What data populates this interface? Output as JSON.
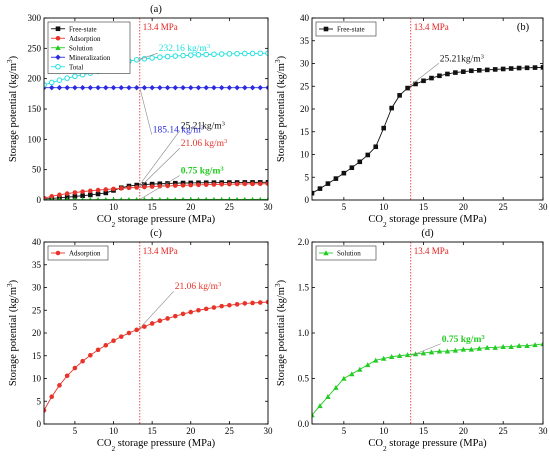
{
  "figure": {
    "ref_line_label": "13.4 MPa",
    "colors": {
      "free_state": "#111111",
      "adsorption": "#e8332a",
      "solution": "#22cc22",
      "mineralization": "#2a2ae0",
      "total": "#22e0e0",
      "ref_line": "#e52020",
      "leader": "#888888"
    }
  },
  "chart_data": [
    {
      "panel_label": "(a)",
      "type": "line",
      "xlabel": "CO2 storage pressure (MPa)",
      "ylabel": "Storage potential (kg/m3)",
      "xlim": [
        1,
        30
      ],
      "ylim": [
        0,
        300
      ],
      "xticks": [
        5,
        10,
        15,
        20,
        25,
        30
      ],
      "yticks": [
        0,
        50,
        100,
        150,
        200,
        250,
        300
      ],
      "ref_x": 13.4,
      "legend_position": "top-left",
      "series": [
        {
          "name": "Free-state",
          "color_key": "free_state",
          "marker": "square",
          "x": [
            1,
            2,
            3,
            4,
            5,
            6,
            7,
            8,
            9,
            10,
            11,
            12,
            13,
            14,
            15,
            16,
            17,
            18,
            19,
            20,
            21,
            22,
            23,
            24,
            25,
            26,
            27,
            28,
            29,
            30
          ],
          "y": [
            1.5,
            2.5,
            3.6,
            4.7,
            5.9,
            7.1,
            8.4,
            9.9,
            11.7,
            15.8,
            20.2,
            23.0,
            24.6,
            25.5,
            26.2,
            26.8,
            27.3,
            27.7,
            28.0,
            28.2,
            28.4,
            28.5,
            28.6,
            28.7,
            28.8,
            28.9,
            29.0,
            29.05,
            29.1,
            29.15
          ]
        },
        {
          "name": "Adsorption",
          "color_key": "adsorption",
          "marker": "circle",
          "x": [
            1,
            2,
            3,
            4,
            5,
            6,
            7,
            8,
            9,
            10,
            11,
            12,
            13,
            14,
            15,
            16,
            17,
            18,
            19,
            20,
            21,
            22,
            23,
            24,
            25,
            26,
            27,
            28,
            29,
            30
          ],
          "y": [
            3.0,
            6.0,
            8.5,
            10.6,
            12.3,
            13.8,
            15.1,
            16.3,
            17.3,
            18.3,
            19.2,
            20.0,
            20.7,
            21.4,
            22.1,
            22.7,
            23.2,
            23.7,
            24.2,
            24.6,
            25.0,
            25.3,
            25.6,
            25.9,
            26.1,
            26.3,
            26.5,
            26.6,
            26.7,
            26.8
          ]
        },
        {
          "name": "Solution",
          "color_key": "solution",
          "marker": "triangle",
          "x": [
            1,
            2,
            3,
            4,
            5,
            6,
            7,
            8,
            9,
            10,
            11,
            12,
            13,
            14,
            15,
            16,
            17,
            18,
            19,
            20,
            21,
            22,
            23,
            24,
            25,
            26,
            27,
            28,
            29,
            30
          ],
          "y": [
            0.1,
            0.2,
            0.3,
            0.4,
            0.5,
            0.55,
            0.6,
            0.65,
            0.7,
            0.72,
            0.74,
            0.75,
            0.76,
            0.77,
            0.78,
            0.79,
            0.8,
            0.8,
            0.81,
            0.82,
            0.82,
            0.83,
            0.84,
            0.84,
            0.85,
            0.85,
            0.86,
            0.86,
            0.87,
            0.88
          ]
        },
        {
          "name": "Mineralization",
          "color_key": "mineralization",
          "marker": "diamond",
          "x": [
            1,
            2,
            3,
            4,
            5,
            6,
            7,
            8,
            9,
            10,
            11,
            12,
            13,
            14,
            15,
            16,
            17,
            18,
            19,
            20,
            21,
            22,
            23,
            24,
            25,
            26,
            27,
            28,
            29,
            30
          ],
          "y": [
            185.14,
            185.14,
            185.14,
            185.14,
            185.14,
            185.14,
            185.14,
            185.14,
            185.14,
            185.14,
            185.14,
            185.14,
            185.14,
            185.14,
            185.14,
            185.14,
            185.14,
            185.14,
            185.14,
            185.14,
            185.14,
            185.14,
            185.14,
            185.14,
            185.14,
            185.14,
            185.14,
            185.14,
            185.14,
            185.14
          ]
        },
        {
          "name": "Total",
          "color_key": "total",
          "marker": "circle-open",
          "x": [
            1,
            2,
            3,
            4,
            5,
            6,
            7,
            8,
            9,
            10,
            11,
            12,
            13,
            14,
            15,
            16,
            17,
            18,
            19,
            20,
            21,
            22,
            23,
            24,
            25,
            26,
            27,
            28,
            29,
            30
          ],
          "y": [
            189.7,
            193.8,
            197.5,
            200.8,
            203.9,
            206.6,
            209.2,
            211.9,
            214.8,
            220.0,
            225.3,
            228.9,
            231.2,
            232.8,
            234.2,
            235.4,
            236.4,
            237.3,
            238.1,
            238.8,
            239.4,
            239.8,
            240.2,
            240.6,
            240.9,
            241.2,
            241.5,
            241.6,
            241.8,
            241.97
          ]
        }
      ],
      "annotations": [
        {
          "text": "232.16 kg/m3",
          "color_key": "total",
          "x": 13.4,
          "y": 232.16
        },
        {
          "text": "185.14 kg/m3",
          "color_key": "mineralization",
          "x": 13.4,
          "y": 185.14
        },
        {
          "text": "25.21kg/m3",
          "color_key": "free_state",
          "x": 13.4,
          "y": 25.21
        },
        {
          "text": "21.06 kg/m3",
          "color_key": "adsorption",
          "x": 13.4,
          "y": 21.06
        },
        {
          "text": "0.75 kg/m3",
          "color_key": "solution",
          "x": 13.4,
          "y": 0.75
        }
      ]
    },
    {
      "panel_label": "(b)",
      "type": "line",
      "xlabel": "CO2 storage pressure (MPa)",
      "ylabel": "Storage potential (kg/m3)",
      "xlim": [
        1,
        30
      ],
      "ylim": [
        0,
        40
      ],
      "xticks": [
        5,
        10,
        15,
        20,
        25,
        30
      ],
      "yticks": [
        0,
        5,
        10,
        15,
        20,
        25,
        30,
        35,
        40
      ],
      "ref_x": 13.4,
      "legend_position": "top-left",
      "series": [
        {
          "name": "Free-state",
          "color_key": "free_state",
          "marker": "square",
          "x": [
            1,
            2,
            3,
            4,
            5,
            6,
            7,
            8,
            9,
            10,
            11,
            12,
            13,
            14,
            15,
            16,
            17,
            18,
            19,
            20,
            21,
            22,
            23,
            24,
            25,
            26,
            27,
            28,
            29,
            30
          ],
          "y": [
            1.5,
            2.5,
            3.6,
            4.7,
            5.9,
            7.1,
            8.4,
            9.9,
            11.7,
            15.8,
            20.2,
            23.0,
            24.6,
            25.5,
            26.2,
            26.8,
            27.3,
            27.7,
            28.0,
            28.2,
            28.4,
            28.5,
            28.6,
            28.7,
            28.8,
            28.9,
            29.0,
            29.05,
            29.1,
            29.15
          ]
        }
      ],
      "annotations": [
        {
          "text": "25.21kg/m3",
          "color_key": "free_state",
          "x": 13.4,
          "y": 25.21
        }
      ]
    },
    {
      "panel_label": "(c)",
      "type": "line",
      "xlabel": "CO2 storage pressure (MPa)",
      "ylabel": "Storage potential (kg/m3)",
      "xlim": [
        1,
        30
      ],
      "ylim": [
        0,
        40
      ],
      "xticks": [
        5,
        10,
        15,
        20,
        25,
        30
      ],
      "yticks": [
        0,
        5,
        10,
        15,
        20,
        25,
        30,
        35,
        40
      ],
      "ref_x": 13.4,
      "legend_position": "top-left",
      "series": [
        {
          "name": "Adsorption",
          "color_key": "adsorption",
          "marker": "circle",
          "x": [
            1,
            2,
            3,
            4,
            5,
            6,
            7,
            8,
            9,
            10,
            11,
            12,
            13,
            14,
            15,
            16,
            17,
            18,
            19,
            20,
            21,
            22,
            23,
            24,
            25,
            26,
            27,
            28,
            29,
            30
          ],
          "y": [
            3.0,
            6.0,
            8.5,
            10.6,
            12.3,
            13.8,
            15.1,
            16.3,
            17.3,
            18.3,
            19.2,
            20.0,
            20.7,
            21.4,
            22.1,
            22.7,
            23.2,
            23.7,
            24.2,
            24.6,
            25.0,
            25.3,
            25.6,
            25.9,
            26.1,
            26.3,
            26.5,
            26.6,
            26.7,
            26.8
          ]
        }
      ],
      "annotations": [
        {
          "text": "21.06 kg/m3",
          "color_key": "adsorption",
          "x": 13.4,
          "y": 21.06
        }
      ]
    },
    {
      "panel_label": "(d)",
      "type": "line",
      "xlabel": "CO2 storage pressure (MPa)",
      "ylabel": "Storage potential (kg/m3)",
      "xlim": [
        1,
        30
      ],
      "ylim": [
        0,
        2.0
      ],
      "xticks": [
        5,
        10,
        15,
        20,
        25,
        30
      ],
      "yticks": [
        0.0,
        0.5,
        1.0,
        1.5,
        2.0
      ],
      "ytick_decimals": 1,
      "ref_x": 13.4,
      "legend_position": "top-left",
      "series": [
        {
          "name": "Solution",
          "color_key": "solution",
          "marker": "triangle",
          "x": [
            1,
            2,
            3,
            4,
            5,
            6,
            7,
            8,
            9,
            10,
            11,
            12,
            13,
            14,
            15,
            16,
            17,
            18,
            19,
            20,
            21,
            22,
            23,
            24,
            25,
            26,
            27,
            28,
            29,
            30
          ],
          "y": [
            0.1,
            0.2,
            0.3,
            0.4,
            0.5,
            0.55,
            0.6,
            0.65,
            0.7,
            0.72,
            0.74,
            0.75,
            0.76,
            0.77,
            0.78,
            0.79,
            0.8,
            0.8,
            0.81,
            0.82,
            0.82,
            0.83,
            0.84,
            0.84,
            0.85,
            0.85,
            0.86,
            0.86,
            0.87,
            0.88
          ]
        }
      ],
      "annotations": [
        {
          "text": "0.75 kg/m3",
          "color_key": "solution",
          "x": 13.4,
          "y": 0.75
        }
      ]
    }
  ]
}
